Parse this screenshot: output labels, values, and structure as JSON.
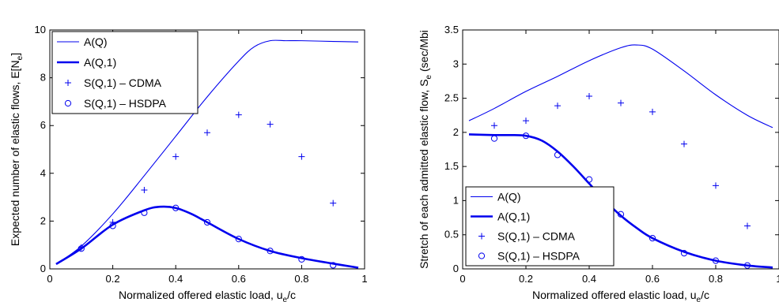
{
  "chart_data": [
    {
      "type": "line",
      "xlabel": "Normalized offered elastic load, u",
      "xlabel_sub": "e",
      "xlabel_tail": "/c",
      "ylabel": "Expected number of elastic flows, E[N",
      "ylabel_sub": "e",
      "ylabel_tail": "]",
      "xlim": [
        0,
        1
      ],
      "ylim": [
        0,
        10
      ],
      "xticks": [
        0,
        0.2,
        0.4,
        0.6,
        0.8,
        1
      ],
      "xtick_labels": [
        "0",
        "0.2",
        "0.4",
        "0.6",
        "0.8",
        "1"
      ],
      "yticks": [
        0,
        2,
        4,
        6,
        8,
        10
      ],
      "ytick_labels": [
        "0",
        "2",
        "4",
        "6",
        "8",
        "10"
      ],
      "legend_position": "top-left",
      "series": [
        {
          "name": "A(Q)",
          "style": "thin-line",
          "x": [
            0.02,
            0.1,
            0.2,
            0.3,
            0.4,
            0.5,
            0.6,
            0.65,
            0.7,
            0.75,
            0.8,
            0.9,
            0.98
          ],
          "y": [
            0.2,
            0.95,
            2.3,
            3.9,
            5.55,
            7.2,
            8.7,
            9.3,
            9.55,
            9.55,
            9.55,
            9.52,
            9.5
          ]
        },
        {
          "name": "A(Q,1)",
          "style": "thick-line",
          "x": [
            0.02,
            0.1,
            0.2,
            0.3,
            0.35,
            0.4,
            0.45,
            0.5,
            0.6,
            0.7,
            0.8,
            0.9,
            0.98
          ],
          "y": [
            0.2,
            0.85,
            1.85,
            2.45,
            2.6,
            2.55,
            2.3,
            1.95,
            1.25,
            0.75,
            0.45,
            0.22,
            0.05
          ]
        },
        {
          "name": "S(Q,1) – CDMA",
          "style": "plus",
          "x": [
            0.1,
            0.2,
            0.3,
            0.4,
            0.5,
            0.6,
            0.7,
            0.8,
            0.9
          ],
          "y": [
            0.9,
            1.95,
            3.3,
            4.7,
            5.7,
            6.45,
            6.05,
            4.7,
            2.75
          ]
        },
        {
          "name": "S(Q,1) – HSDPA",
          "style": "circle",
          "x": [
            0.1,
            0.2,
            0.3,
            0.4,
            0.5,
            0.6,
            0.7,
            0.8,
            0.9
          ],
          "y": [
            0.85,
            1.8,
            2.35,
            2.55,
            1.95,
            1.25,
            0.75,
            0.4,
            0.15
          ]
        }
      ]
    },
    {
      "type": "line",
      "xlabel": "Normalized offered elastic load, u",
      "xlabel_sub": "e",
      "xlabel_tail": "/c",
      "ylabel": "Stretch of each admitted elastic flow, S",
      "ylabel_sub": "e",
      "ylabel_tail": " (sec/Mbi",
      "xlim": [
        0,
        1
      ],
      "ylim": [
        0,
        3.5
      ],
      "xticks": [
        0,
        0.2,
        0.4,
        0.6,
        0.8,
        1
      ],
      "xtick_labels": [
        "0",
        "0.2",
        "0.4",
        "0.6",
        "0.8",
        "1"
      ],
      "yticks": [
        0,
        0.5,
        1,
        1.5,
        2,
        2.5,
        3,
        3.5
      ],
      "ytick_labels": [
        "0",
        "0.5",
        "1",
        "1.5",
        "2",
        "2.5",
        "3",
        "3.5"
      ],
      "legend_position": "bottom-left",
      "series": [
        {
          "name": "A(Q)",
          "style": "thin-line",
          "x": [
            0.02,
            0.1,
            0.2,
            0.3,
            0.4,
            0.5,
            0.55,
            0.6,
            0.7,
            0.8,
            0.9,
            0.98
          ],
          "y": [
            2.17,
            2.35,
            2.6,
            2.82,
            3.05,
            3.24,
            3.28,
            3.22,
            2.9,
            2.55,
            2.25,
            2.07
          ]
        },
        {
          "name": "A(Q,1)",
          "style": "thick-line",
          "x": [
            0.02,
            0.1,
            0.15,
            0.2,
            0.25,
            0.3,
            0.35,
            0.4,
            0.45,
            0.5,
            0.55,
            0.6,
            0.7,
            0.8,
            0.9,
            0.98
          ],
          "y": [
            1.97,
            1.96,
            1.96,
            1.95,
            1.88,
            1.72,
            1.5,
            1.25,
            1.0,
            0.78,
            0.6,
            0.45,
            0.25,
            0.12,
            0.05,
            0.02
          ]
        },
        {
          "name": "S(Q,1) – CDMA",
          "style": "plus",
          "x": [
            0.1,
            0.2,
            0.3,
            0.4,
            0.5,
            0.6,
            0.7,
            0.8,
            0.9
          ],
          "y": [
            2.1,
            2.17,
            2.39,
            2.53,
            2.43,
            2.3,
            1.83,
            1.22,
            0.63
          ]
        },
        {
          "name": "S(Q,1) – HSDPA",
          "style": "circle",
          "x": [
            0.1,
            0.2,
            0.3,
            0.4,
            0.5,
            0.6,
            0.7,
            0.8,
            0.9
          ],
          "y": [
            1.91,
            1.95,
            1.67,
            1.31,
            0.8,
            0.45,
            0.23,
            0.12,
            0.05
          ]
        }
      ]
    }
  ],
  "colors": {
    "series": "#0000ee",
    "axis": "#000000"
  }
}
